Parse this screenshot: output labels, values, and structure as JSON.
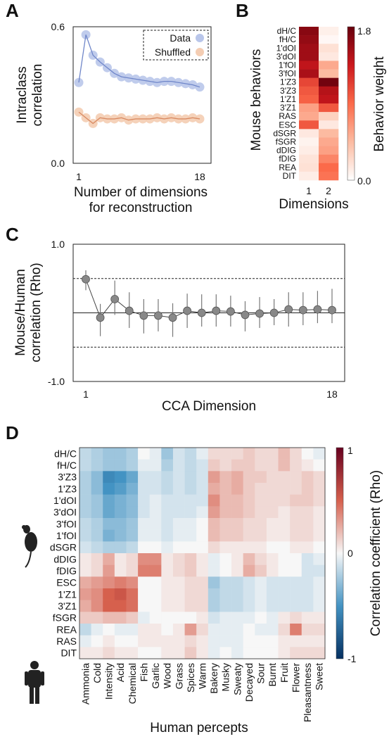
{
  "chart_data": [
    {
      "panel": "A",
      "type": "line",
      "xlabel": "Number of dimensions\nfor reconstruction",
      "ylabel": "Intraclass\ncorrelation",
      "xlim": [
        1,
        18
      ],
      "xticks": [
        "1",
        "18"
      ],
      "ylim": [
        0.0,
        0.6
      ],
      "yticks": [
        "0.0",
        "0.6"
      ],
      "legend_position": "top-right",
      "legend_box": "dashed",
      "series": [
        {
          "name": "Data",
          "marker_color": "#b9c6ea",
          "line_color": "#6f86c9",
          "x": [
            1,
            2,
            3,
            4,
            5,
            6,
            7,
            8,
            9,
            10,
            11,
            12,
            13,
            14,
            15,
            16,
            17,
            18
          ],
          "y": [
            0.355,
            0.565,
            0.475,
            0.445,
            0.42,
            0.395,
            0.38,
            0.375,
            0.37,
            0.365,
            0.36,
            0.355,
            0.36,
            0.36,
            0.355,
            0.35,
            0.345,
            0.335
          ]
        },
        {
          "name": "Shuffled",
          "marker_color": "#f4cdb3",
          "line_color": "#d98a62",
          "x": [
            1,
            2,
            3,
            4,
            5,
            6,
            7,
            8,
            9,
            10,
            11,
            12,
            13,
            14,
            15,
            16,
            17,
            18
          ],
          "y": [
            0.225,
            0.2,
            0.175,
            0.2,
            0.195,
            0.195,
            0.2,
            0.19,
            0.195,
            0.195,
            0.195,
            0.2,
            0.195,
            0.2,
            0.195,
            0.195,
            0.2,
            0.195
          ]
        }
      ]
    },
    {
      "panel": "B",
      "type": "heatmap",
      "xlabel": "Dimensions",
      "ylabel": "Mouse behaviors",
      "colorbar_label": "Behavior weight",
      "colorbar_range": [
        0.0,
        1.8
      ],
      "colorbar_ticks": [
        "1.8",
        "0.0"
      ],
      "colormap": [
        "#ffffff",
        "#fcbba1",
        "#fb6a4a",
        "#cb181d",
        "#67000d"
      ],
      "columns": [
        "1",
        "2"
      ],
      "rows": [
        "dH/C",
        "fH/C",
        "1'dOI",
        "3'dOI",
        "1'fOI",
        "3'fOI",
        "1'Z3",
        "3'Z3",
        "1'Z1",
        "3'Z1",
        "RAS",
        "ESC",
        "dSGR",
        "fSGR",
        "dDIG",
        "fDIG",
        "REA",
        "DIT"
      ],
      "values": [
        [
          1.65,
          0.1
        ],
        [
          1.6,
          0.05
        ],
        [
          1.55,
          0.2
        ],
        [
          1.55,
          0.15
        ],
        [
          1.4,
          0.55
        ],
        [
          1.5,
          0.45
        ],
        [
          1.1,
          1.75
        ],
        [
          1.0,
          1.45
        ],
        [
          0.95,
          1.4
        ],
        [
          0.6,
          1.0
        ],
        [
          0.55,
          0.3
        ],
        [
          1.0,
          0.15
        ],
        [
          0.15,
          0.45
        ],
        [
          0.08,
          0.55
        ],
        [
          0.12,
          0.6
        ],
        [
          0.18,
          0.75
        ],
        [
          0.2,
          0.9
        ],
        [
          0.12,
          0.85
        ]
      ]
    },
    {
      "panel": "C",
      "type": "scatter",
      "xlabel": "CCA Dimension",
      "ylabel": "Mouse/Human\ncorrelation (Rho)",
      "xlim": [
        1,
        18
      ],
      "xticks": [
        "1",
        "18"
      ],
      "ylim": [
        -1.0,
        1.0
      ],
      "yticks": [
        "1.0",
        "-1.0"
      ],
      "reference_lines": [
        0.5,
        0.0,
        -0.5
      ],
      "marker_color": "#888888",
      "x": [
        1,
        2,
        3,
        4,
        5,
        6,
        7,
        8,
        9,
        10,
        11,
        12,
        13,
        14,
        15,
        16,
        17,
        18
      ],
      "y": [
        0.49,
        -0.07,
        0.2,
        0.03,
        -0.04,
        -0.04,
        -0.07,
        0.03,
        0.0,
        0.03,
        0.02,
        -0.03,
        -0.01,
        0.0,
        0.05,
        0.04,
        0.05,
        0.04
      ],
      "err_low": [
        0.33,
        -0.34,
        -0.03,
        -0.22,
        -0.3,
        -0.27,
        -0.35,
        -0.22,
        -0.2,
        -0.2,
        -0.2,
        -0.27,
        -0.22,
        -0.18,
        -0.2,
        -0.18,
        -0.15,
        -0.15
      ],
      "err_high": [
        0.62,
        0.13,
        0.47,
        0.3,
        0.2,
        0.2,
        0.14,
        0.28,
        0.27,
        0.27,
        0.25,
        0.17,
        0.23,
        0.2,
        0.3,
        0.3,
        0.32,
        0.35
      ]
    },
    {
      "panel": "D",
      "type": "heatmap",
      "xlabel": "Human percepts",
      "ylabel": "",
      "colorbar_label": "Correlation coefficient (Rho)",
      "colorbar_range": [
        -1,
        1
      ],
      "colorbar_ticks": [
        "1",
        "0",
        "-1"
      ],
      "colormap": [
        "#053061",
        "#4393c3",
        "#f7f7f7",
        "#d6604d",
        "#67001f"
      ],
      "columns": [
        "Ammonia",
        "Cold",
        "Intensity",
        "Acid",
        "Chemical",
        "Fish",
        "Garlic",
        "Wood",
        "Grass",
        "Spices",
        "Warm",
        "Bakery",
        "Musky",
        "Sweaty",
        "Decayed",
        "Sour",
        "Burnt",
        "Fruit",
        "Flower",
        "Pleasantness",
        "Sweet"
      ],
      "rows": [
        "dH/C",
        "fH/C",
        "3'Z3",
        "1'Z3",
        "1'dOI",
        "3'dOI",
        "3'fOI",
        "1'fOI",
        "dSGR",
        "dDIG",
        "fDIG",
        "ESC",
        "1'Z1",
        "3'Z1",
        "fSGR",
        "REA",
        "RAS",
        "DIT"
      ],
      "values": [
        [
          -0.15,
          -0.2,
          -0.25,
          -0.25,
          -0.2,
          0.0,
          -0.05,
          -0.25,
          -0.1,
          -0.15,
          -0.05,
          0.1,
          0.1,
          0.1,
          0.15,
          0.1,
          0.1,
          0.2,
          0.1,
          0.0,
          -0.05
        ],
        [
          -0.15,
          -0.2,
          -0.25,
          -0.25,
          -0.2,
          -0.05,
          -0.05,
          -0.2,
          -0.1,
          -0.15,
          -0.1,
          0.15,
          0.1,
          0.15,
          0.15,
          0.1,
          0.1,
          0.2,
          0.1,
          0.05,
          0.0
        ],
        [
          -0.2,
          -0.3,
          -0.55,
          -0.5,
          -0.4,
          -0.1,
          -0.1,
          -0.15,
          -0.1,
          -0.15,
          -0.1,
          0.3,
          0.2,
          0.25,
          0.15,
          0.15,
          0.1,
          0.1,
          0.1,
          0.15,
          0.1
        ],
        [
          -0.2,
          -0.3,
          -0.5,
          -0.45,
          -0.35,
          -0.1,
          -0.1,
          -0.15,
          -0.1,
          -0.15,
          -0.1,
          0.25,
          0.2,
          0.25,
          0.15,
          0.1,
          0.1,
          0.1,
          0.1,
          0.15,
          0.1
        ],
        [
          -0.2,
          -0.25,
          -0.4,
          -0.35,
          -0.3,
          -0.1,
          -0.05,
          -0.1,
          -0.1,
          -0.1,
          -0.1,
          0.35,
          0.2,
          0.2,
          0.15,
          0.1,
          0.1,
          0.1,
          0.15,
          0.15,
          0.1
        ],
        [
          -0.2,
          -0.25,
          -0.4,
          -0.35,
          -0.3,
          -0.1,
          -0.05,
          -0.1,
          -0.1,
          -0.1,
          -0.05,
          0.3,
          0.2,
          0.2,
          0.15,
          0.1,
          0.1,
          0.05,
          0.1,
          0.1,
          0.05
        ],
        [
          -0.15,
          -0.2,
          -0.3,
          -0.3,
          -0.25,
          -0.05,
          -0.05,
          -0.1,
          -0.05,
          -0.05,
          0.0,
          0.2,
          0.15,
          0.15,
          0.1,
          0.1,
          0.05,
          0.05,
          0.1,
          0.1,
          0.05
        ],
        [
          -0.15,
          -0.2,
          -0.35,
          -0.3,
          -0.25,
          -0.05,
          -0.05,
          -0.1,
          -0.05,
          -0.05,
          0.0,
          0.2,
          0.15,
          0.15,
          0.1,
          0.1,
          0.05,
          0.05,
          0.1,
          0.1,
          0.05
        ],
        [
          -0.1,
          -0.15,
          -0.2,
          -0.2,
          -0.15,
          0.0,
          0.0,
          -0.05,
          0.0,
          0.0,
          0.0,
          0.1,
          0.05,
          0.05,
          0.05,
          0.05,
          0.0,
          0.0,
          0.05,
          0.05,
          0.0
        ],
        [
          0.05,
          0.1,
          0.25,
          0.05,
          0.1,
          0.35,
          0.35,
          0.05,
          0.1,
          0.15,
          0.05,
          -0.05,
          0.0,
          0.05,
          0.2,
          0.1,
          0.05,
          0.0,
          0.0,
          -0.1,
          -0.05
        ],
        [
          0.05,
          0.1,
          0.3,
          0.05,
          0.1,
          0.4,
          0.4,
          0.05,
          0.1,
          0.15,
          0.05,
          -0.05,
          0.0,
          0.05,
          0.25,
          0.15,
          0.05,
          0.0,
          0.0,
          -0.1,
          -0.1
        ],
        [
          0.25,
          0.3,
          0.35,
          0.4,
          0.35,
          0.0,
          0.0,
          0.05,
          0.05,
          0.1,
          0.1,
          -0.25,
          -0.15,
          -0.15,
          -0.1,
          -0.05,
          -0.1,
          -0.1,
          -0.1,
          -0.1,
          -0.05
        ],
        [
          0.3,
          0.35,
          0.5,
          0.55,
          0.45,
          0.0,
          0.0,
          0.05,
          0.05,
          0.1,
          0.1,
          -0.2,
          -0.15,
          -0.15,
          -0.1,
          -0.05,
          -0.1,
          -0.1,
          -0.1,
          -0.1,
          -0.05
        ],
        [
          0.25,
          0.35,
          0.5,
          0.5,
          0.45,
          0.0,
          0.0,
          0.05,
          0.05,
          0.1,
          0.1,
          -0.2,
          -0.15,
          -0.15,
          -0.1,
          -0.05,
          -0.1,
          -0.1,
          -0.1,
          -0.1,
          -0.05
        ],
        [
          0.15,
          0.15,
          0.2,
          0.2,
          0.15,
          -0.05,
          0.0,
          0.0,
          0.0,
          0.0,
          0.05,
          -0.1,
          -0.05,
          -0.05,
          -0.05,
          0.0,
          -0.05,
          0.05,
          0.1,
          0.05,
          0.05
        ],
        [
          -0.15,
          -0.05,
          0.0,
          -0.05,
          -0.05,
          0.05,
          0.05,
          0.0,
          0.05,
          0.3,
          0.1,
          -0.05,
          -0.05,
          -0.05,
          0.0,
          -0.05,
          -0.05,
          0.1,
          0.4,
          0.1,
          0.1
        ],
        [
          -0.05,
          0.0,
          0.05,
          0.0,
          0.0,
          0.05,
          0.05,
          0.05,
          0.05,
          0.1,
          0.05,
          -0.05,
          -0.05,
          -0.05,
          0.0,
          0.0,
          0.0,
          0.05,
          0.05,
          0.05,
          0.05
        ],
        [
          0.05,
          0.05,
          0.1,
          0.05,
          0.05,
          0.0,
          0.0,
          0.05,
          0.05,
          0.15,
          0.05,
          -0.05,
          0.0,
          -0.05,
          0.0,
          0.0,
          0.0,
          0.05,
          0.1,
          0.1,
          0.1
        ]
      ]
    }
  ]
}
